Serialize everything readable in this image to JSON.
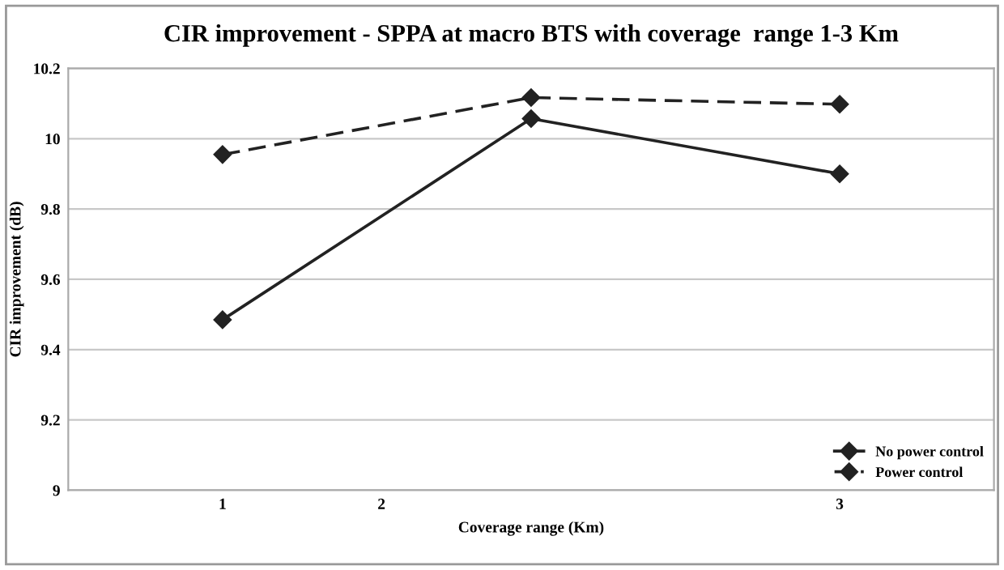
{
  "chart_data": {
    "type": "line",
    "title": "CIR improvement - SPPA at macro BTS with coverage  range 1-3 Km",
    "xlabel": "Coverage range (Km)",
    "ylabel": "CIR improvement (dB)",
    "x": [
      1,
      2,
      3
    ],
    "series": [
      {
        "name": "No power control",
        "color": "#222222",
        "line_style": "solid",
        "values": [
          9.485,
          10.057,
          9.9
        ]
      },
      {
        "name": "Power control",
        "color": "#222222",
        "line_style": "dashed",
        "values": [
          9.955,
          10.117,
          10.098
        ]
      }
    ],
    "xlim": [
      0.5,
      3.5
    ],
    "xticks": [
      1,
      {
        "value": 1.515,
        "label": "2"
      },
      3
    ],
    "ylim": [
      9,
      10.2
    ],
    "yticks": [
      9,
      9.2,
      9.4,
      9.6,
      9.8,
      10,
      10.2
    ],
    "grid": "y",
    "legend": "bottom right",
    "marker": "diamond"
  }
}
